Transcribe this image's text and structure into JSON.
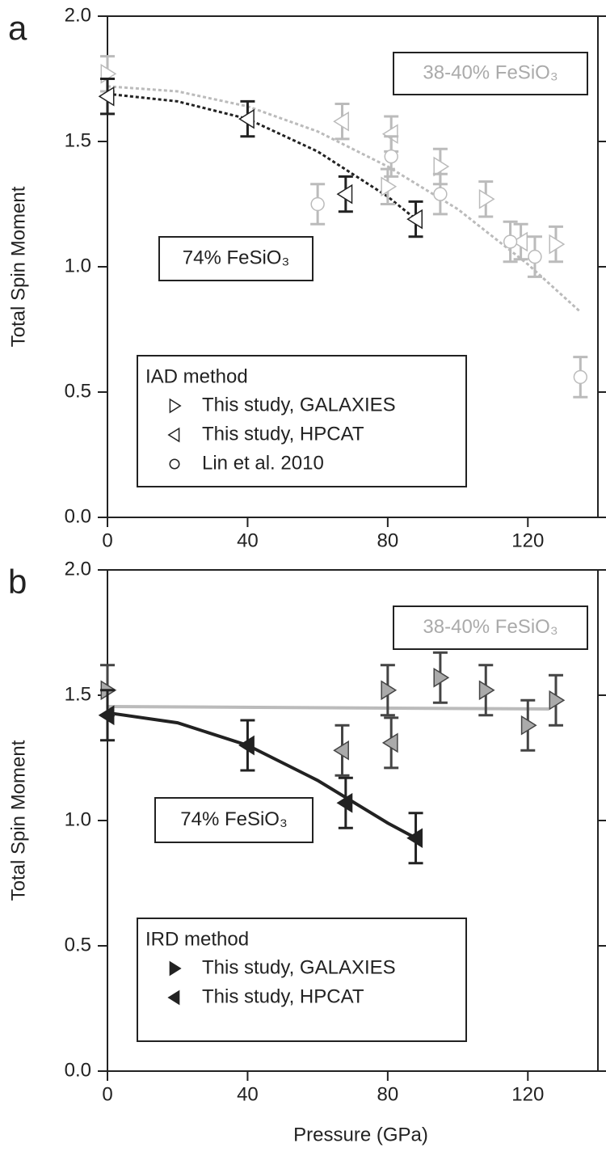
{
  "chart_data": [
    {
      "type": "scatter",
      "panel_label": "a",
      "ylabel": "Total Spin Moment",
      "xlim": [
        0,
        140
      ],
      "ylim": [
        0,
        2.0
      ],
      "xticks": [
        0,
        40,
        80,
        120
      ],
      "yticks": [
        {
          "value": 0,
          "label": "0.0"
        },
        {
          "value": 0.5,
          "label": "0.5"
        },
        {
          "value": 1,
          "label": "1.0"
        },
        {
          "value": 1.5,
          "label": "1.5"
        },
        {
          "value": 2,
          "label": "2.0"
        }
      ],
      "annotations": [
        "38-40% FeSiO₃",
        "74% FeSiO₃"
      ],
      "legend": {
        "title": "IAD method",
        "entries": [
          {
            "label": "This study, GALAXIES",
            "marker": "right"
          },
          {
            "label": "This study, HPCAT",
            "marker": "left"
          },
          {
            "label": "Lin et al. 2010",
            "marker": "circle"
          }
        ]
      },
      "series": [
        {
          "marker": "right",
          "color": "#bbbbbb",
          "fill": "#ffffff",
          "x": [
            0,
            80,
            95,
            108,
            128
          ],
          "values": [
            1.77,
            1.32,
            1.4,
            1.27,
            1.09
          ],
          "errors": [
            0.07,
            0.07,
            0.07,
            0.07,
            0.07
          ]
        },
        {
          "marker": "left",
          "color": "#bbbbbb",
          "fill": "#ffffff",
          "x": [
            67,
            81,
            118
          ],
          "values": [
            1.58,
            1.53,
            1.1
          ],
          "errors": [
            0.07,
            0.07,
            0.07
          ]
        },
        {
          "marker": "circle",
          "color": "#bbbbbb",
          "fill": "#ffffff",
          "x": [
            60,
            81,
            95,
            115,
            122,
            135
          ],
          "values": [
            1.25,
            1.44,
            1.29,
            1.1,
            1.04,
            0.56
          ],
          "errors": [
            0.08,
            0.08,
            0.08,
            0.08,
            0.08,
            0.08
          ]
        },
        {
          "marker": "left",
          "color": "#222222",
          "fill": "#ffffff",
          "x": [
            0,
            40,
            68,
            88
          ],
          "values": [
            1.68,
            1.59,
            1.29,
            1.19
          ],
          "errors": [
            0.07,
            0.07,
            0.07,
            0.07
          ]
        }
      ],
      "fits": [
        {
          "color": "#bbbbbb",
          "dash": true,
          "x": [
            0,
            20,
            40,
            60,
            80,
            100,
            120,
            135
          ],
          "values": [
            1.72,
            1.7,
            1.64,
            1.54,
            1.4,
            1.23,
            1.01,
            0.82
          ]
        },
        {
          "color": "#222222",
          "dash": true,
          "x": [
            0,
            20,
            40,
            60,
            80,
            88
          ],
          "values": [
            1.69,
            1.66,
            1.59,
            1.46,
            1.28,
            1.19
          ]
        }
      ]
    },
    {
      "type": "scatter",
      "panel_label": "b",
      "xlabel": "Pressure (GPa)",
      "ylabel": "Total Spin Moment",
      "xlim": [
        0,
        140
      ],
      "ylim": [
        0,
        2.0
      ],
      "xticks": [
        0,
        40,
        80,
        120
      ],
      "yticks": [
        {
          "value": 0,
          "label": "0.0"
        },
        {
          "value": 0.5,
          "label": "0.5"
        },
        {
          "value": 1,
          "label": "1.0"
        },
        {
          "value": 1.5,
          "label": "1.5"
        },
        {
          "value": 2,
          "label": "2.0"
        }
      ],
      "annotations": [
        "38-40% FeSiO₃",
        "74% FeSiO₃"
      ],
      "legend": {
        "title": "IRD method",
        "entries": [
          {
            "label": "This study, GALAXIES",
            "marker": "right"
          },
          {
            "label": "This study, HPCAT",
            "marker": "left"
          }
        ]
      },
      "series": [
        {
          "marker": "right",
          "color": "#444444",
          "fill": "#aaaaaa",
          "x": [
            0,
            80,
            95,
            108,
            120,
            128
          ],
          "values": [
            1.52,
            1.52,
            1.57,
            1.52,
            1.38,
            1.48
          ],
          "errors": [
            0.1,
            0.1,
            0.1,
            0.1,
            0.1,
            0.1
          ]
        },
        {
          "marker": "left",
          "color": "#444444",
          "fill": "#aaaaaa",
          "x": [
            67,
            81
          ],
          "values": [
            1.28,
            1.31
          ],
          "errors": [
            0.1,
            0.1
          ]
        },
        {
          "marker": "left",
          "color": "#222222",
          "fill": "#222222",
          "x": [
            0,
            40,
            68,
            88
          ],
          "values": [
            1.42,
            1.3,
            1.07,
            0.93
          ],
          "errors": [
            0.1,
            0.1,
            0.1,
            0.1
          ]
        }
      ],
      "fits": [
        {
          "color": "#bbbbbb",
          "dash": false,
          "x": [
            0,
            126
          ],
          "values": [
            1.455,
            1.445
          ]
        },
        {
          "color": "#222222",
          "dash": false,
          "x": [
            0,
            20,
            40,
            60,
            80,
            88
          ],
          "values": [
            1.43,
            1.39,
            1.3,
            1.16,
            0.99,
            0.93
          ]
        }
      ]
    }
  ]
}
